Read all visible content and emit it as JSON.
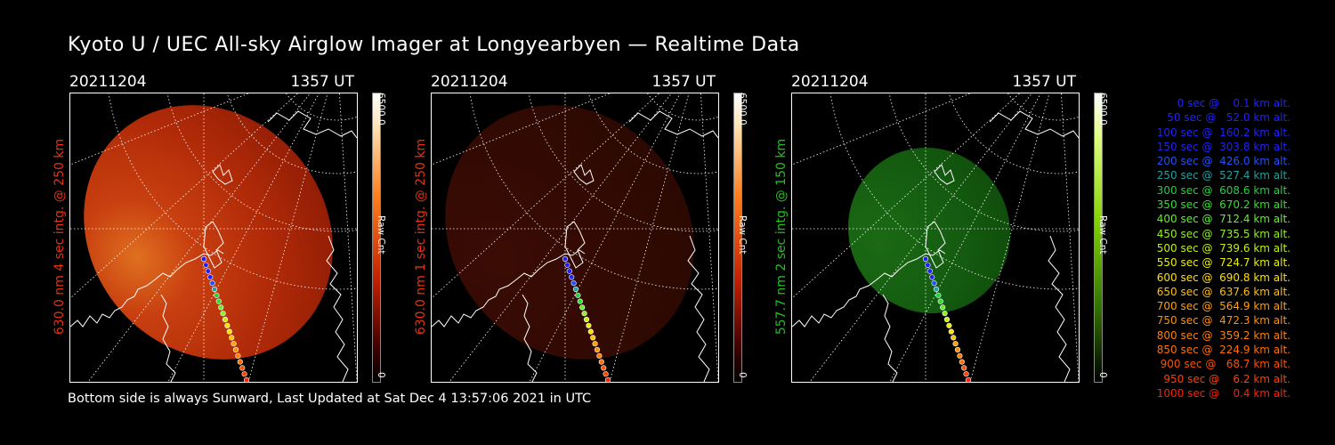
{
  "title": "Kyoto U / UEC All-sky Airglow Imager at Longyearbyen — Realtime Data",
  "footer": "Bottom side is always Sunward, Last Updated at Sat Dec  4 13:57:06 2021 in UTC",
  "panels": [
    {
      "date": "20211204",
      "time": "1357 UT",
      "side_label": "630.0 nm 4 sec intg. @ 250 km",
      "label_color": "#e83010",
      "colorbar_top": "6500.0",
      "colorbar_mid": "Raw Cnt",
      "colorbar_bottom": "0",
      "colormap": "red"
    },
    {
      "date": "20211204",
      "time": "1357 UT",
      "side_label": "630.0 nm 1 sec intg. @ 250 km",
      "label_color": "#e83010",
      "colorbar_top": "6500.0",
      "colorbar_mid": "Raw Cnt",
      "colorbar_bottom": "0",
      "colormap": "red"
    },
    {
      "date": "20211204",
      "time": "1357 UT",
      "side_label": "557.7 nm 2 sec intg. @ 150 km",
      "label_color": "#20c020",
      "colorbar_top": "6500.0",
      "colorbar_mid": "Raw Cnt",
      "colorbar_bottom": "0",
      "colormap": "green"
    }
  ],
  "legend": [
    {
      "text": "   0 sec @    0.1 km alt.",
      "color": "#2020ff"
    },
    {
      "text": "  50 sec @   52.0 km alt.",
      "color": "#2020ff"
    },
    {
      "text": " 100 sec @  160.2 km alt.",
      "color": "#2020ff"
    },
    {
      "text": " 150 sec @  303.8 km alt.",
      "color": "#2020ff"
    },
    {
      "text": " 200 sec @  426.0 km alt.",
      "color": "#2050ff"
    },
    {
      "text": " 250 sec @  527.4 km alt.",
      "color": "#20a0a0"
    },
    {
      "text": " 300 sec @  608.6 km alt.",
      "color": "#20d040"
    },
    {
      "text": " 350 sec @  670.2 km alt.",
      "color": "#30e030"
    },
    {
      "text": " 400 sec @  712.4 km alt.",
      "color": "#60f030"
    },
    {
      "text": " 450 sec @  735.5 km alt.",
      "color": "#90f020"
    },
    {
      "text": " 500 sec @  739.6 km alt.",
      "color": "#c0f010"
    },
    {
      "text": " 550 sec @  724.7 km alt.",
      "color": "#e8f000"
    },
    {
      "text": " 600 sec @  690.8 km alt.",
      "color": "#ffe000"
    },
    {
      "text": " 650 sec @  637.6 km alt.",
      "color": "#ffc000"
    },
    {
      "text": " 700 sec @  564.9 km alt.",
      "color": "#ffa000"
    },
    {
      "text": " 750 sec @  472.3 km alt.",
      "color": "#ff9000"
    },
    {
      "text": " 800 sec @  359.2 km alt.",
      "color": "#ff8000"
    },
    {
      "text": " 850 sec @  224.9 km alt.",
      "color": "#ff7000"
    },
    {
      "text": " 900 sec @   68.7 km alt.",
      "color": "#ff5000"
    },
    {
      "text": " 950 sec @    6.2 km alt.",
      "color": "#ff4000"
    },
    {
      "text": "1000 sec @    0.4 km alt.",
      "color": "#ff2000"
    }
  ]
}
